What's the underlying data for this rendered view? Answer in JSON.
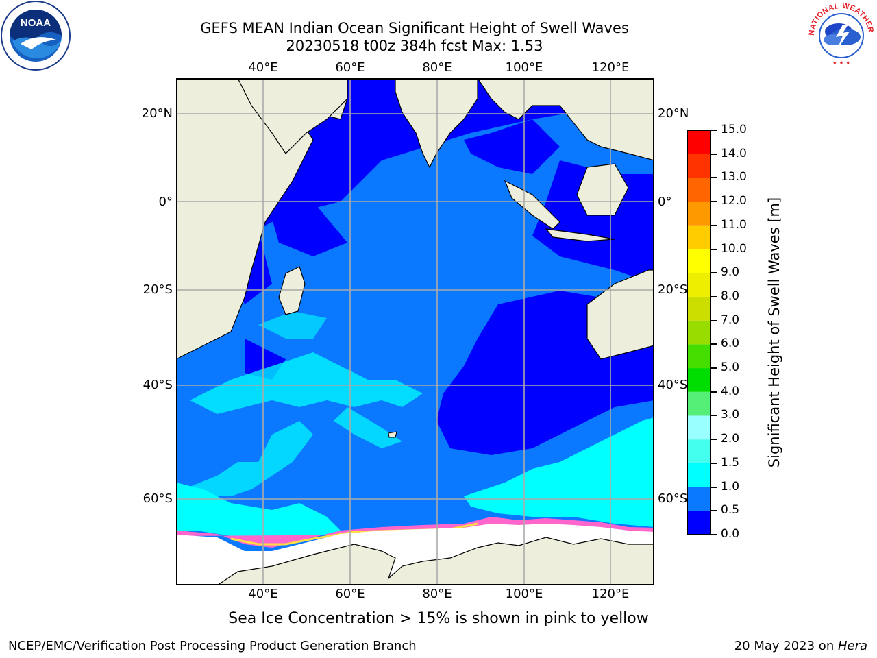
{
  "title": {
    "line1": "GEFS MEAN Indian Ocean Significant Height of Swell Waves",
    "line2": "20230518 t00z 384h fcst   Max: 1.53"
  },
  "map": {
    "lon_labels": [
      "40°E",
      "60°E",
      "80°E",
      "100°E",
      "120°E"
    ],
    "lat_labels": [
      "20°N",
      "0°",
      "20°S",
      "40°S",
      "60°S"
    ],
    "colors": {
      "ocean_low": "#0000ff",
      "ocean_mid": "#0a78ff",
      "ocean_high": "#00ffff",
      "land": "#eeeedd",
      "ice": "#ffffff",
      "ice_edge": "#ff66cc",
      "grid": "#aaaaaa"
    }
  },
  "colorbar": {
    "label": "Significant Height of Swell Waves [m]",
    "ticks": [
      "0.0",
      "0.5",
      "1.0",
      "1.5",
      "2.0",
      "3.0",
      "4.0",
      "5.0",
      "6.0",
      "7.0",
      "8.0",
      "9.0",
      "10.0",
      "11.0",
      "12.0",
      "13.0",
      "14.0",
      "15.0"
    ],
    "colors": [
      "#0000ff",
      "#0a78ff",
      "#00ffff",
      "#44ffee",
      "#99ffff",
      "#55ee77",
      "#00dd00",
      "#44dd00",
      "#99dd00",
      "#ccdd00",
      "#eeee00",
      "#ffff00",
      "#ffcc00",
      "#ff9900",
      "#ff6600",
      "#ff3300",
      "#ff0000"
    ]
  },
  "note": "Sea Ice Concentration > 15% is shown in pink to yellow",
  "footer": {
    "left": "NCEP/EMC/Verification Post Processing Product Generation Branch",
    "right_prefix": "20 May 2023 on ",
    "right_host": "Hera"
  },
  "logos": {
    "noaa": "NOAA",
    "nws": "NATIONAL WEATHER SERVICE"
  }
}
